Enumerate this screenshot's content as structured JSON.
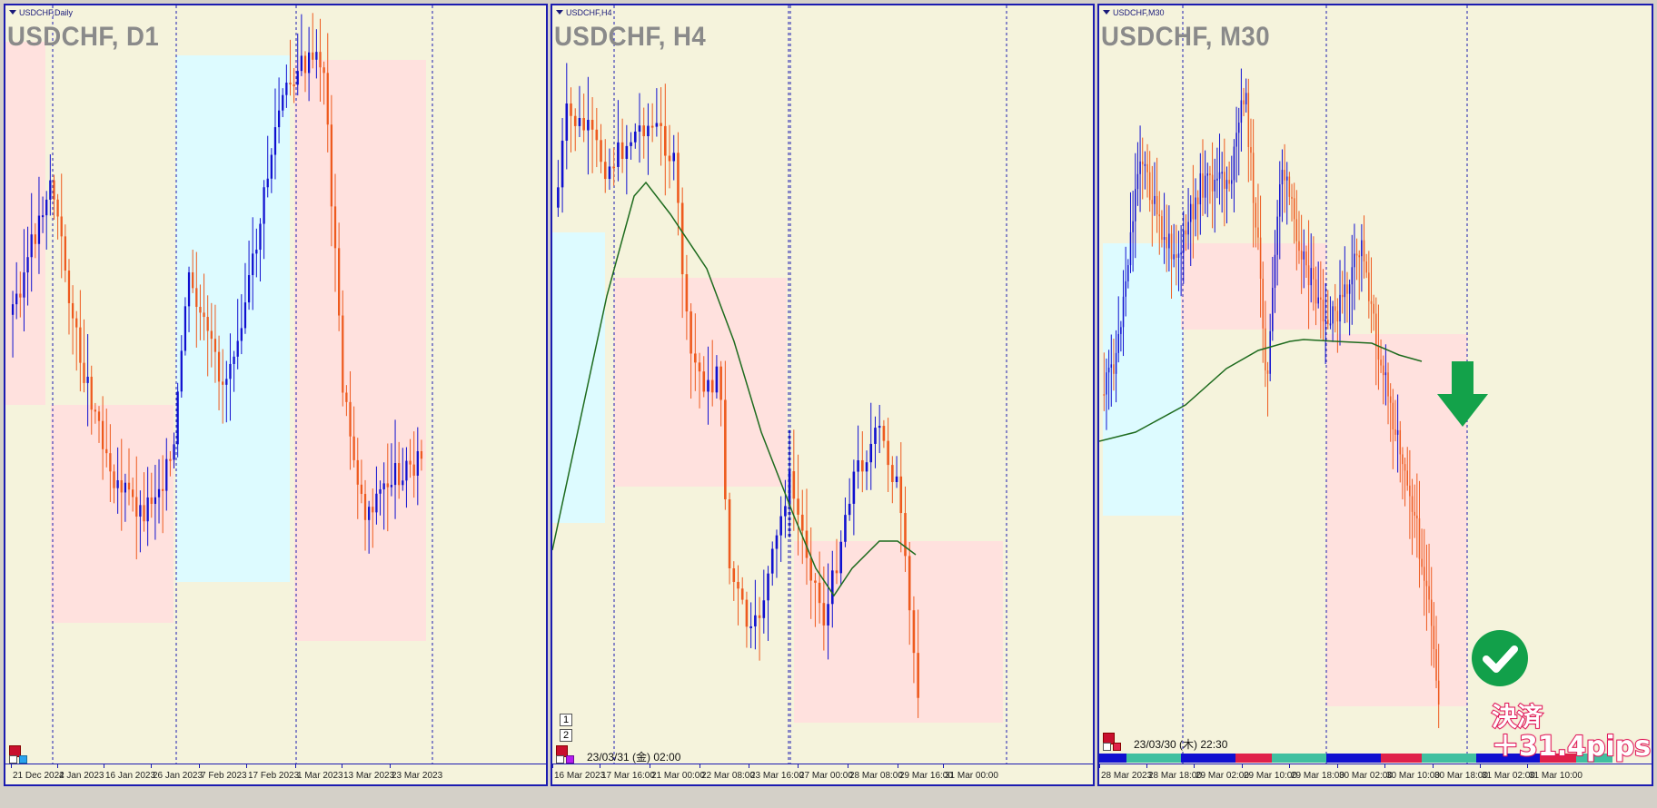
{
  "panels": [
    {
      "tag": "USDCHF,Daily",
      "title": "USDCHF, D1",
      "x_labels": [
        "21 Dec 2022",
        "4 Jan 2023",
        "16 Jan 2023",
        "26 Jan 2023",
        "7 Feb 2023",
        "17 Feb 2023",
        "1 Mar 2023",
        "13 Mar 2023",
        "23 Mar 2023"
      ]
    },
    {
      "tag": "USDCHF,H4",
      "title": "USDCHF, H4",
      "timestamp": "23/03/31 (金) 02:00",
      "buttons": [
        "1",
        "2"
      ],
      "x_labels": [
        "16 Mar 2023",
        "17 Mar 16:00",
        "21 Mar 00:00",
        "22 Mar 08:00",
        "23 Mar 16:00",
        "27 Mar 00:00",
        "28 Mar 08:00",
        "29 Mar 16:00",
        "31 Mar 00:00"
      ]
    },
    {
      "tag": "USDCHF,M30",
      "title": "USDCHF, M30",
      "timestamp": "23/03/30 (木) 22:30",
      "x_labels": [
        "28 Mar 2023",
        "28 Mar 18:00",
        "29 Mar 02:00",
        "29 Mar 10:00",
        "29 Mar 18:00",
        "30 Mar 02:00",
        "30 Mar 10:00",
        "30 Mar 18:00",
        "31 Mar 02:00",
        "31 Mar 10:00"
      ]
    }
  ],
  "overlay": {
    "settle_line1": "決済",
    "settle_line2": "＋31.4pips",
    "arrow_icon": "down-arrow-icon",
    "check_icon": "check-icon"
  },
  "colors": {
    "background": "#f5f3dc",
    "bull": "#1010d0",
    "bear": "#ee5a1e",
    "zone_red": "#ffe1de",
    "zone_blue": "#ddfbff",
    "ma": "#1e6b1e",
    "arrow": "#13a24a"
  }
}
